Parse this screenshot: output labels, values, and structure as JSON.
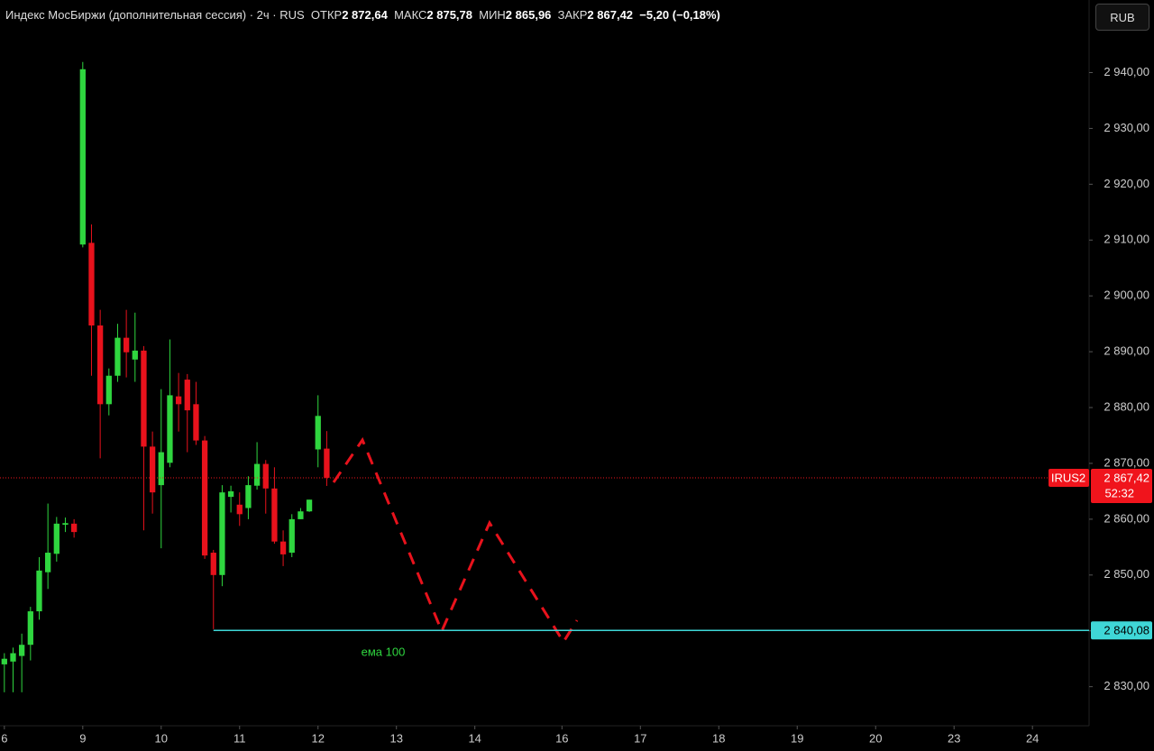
{
  "header": {
    "instrument": "Индекс МосБиржи (дополнительная сессия) · 2ч · RUS",
    "open_label": "ОТКР",
    "open": "2 872,64",
    "high_label": "МАКС",
    "high": "2 875,78",
    "low_label": "МИН",
    "low": "2 865,96",
    "close_label": "ЗАКР",
    "close": "2 867,42",
    "change": "−5,20 (−0,18%)",
    "currency": "RUB"
  },
  "chart_data": {
    "type": "candlestick",
    "ylim": [
      2823,
      2953
    ],
    "yticks": [
      {
        "value": 2830,
        "label": "2 830,00"
      },
      {
        "value": 2840,
        "label": "2 840,00"
      },
      {
        "value": 2850,
        "label": "2 850,00"
      },
      {
        "value": 2860,
        "label": "2 860,00"
      },
      {
        "value": 2870,
        "label": "2 870,00"
      },
      {
        "value": 2880,
        "label": "2 880,00"
      },
      {
        "value": 2890,
        "label": "2 890,00"
      },
      {
        "value": 2900,
        "label": "2 900,00"
      },
      {
        "value": 2910,
        "label": "2 910,00"
      },
      {
        "value": 2920,
        "label": "2 920,00"
      },
      {
        "value": 2930,
        "label": "2 930,00"
      },
      {
        "value": 2940,
        "label": "2 940,00"
      }
    ],
    "xlim": [
      -0.5,
      124.5
    ],
    "xticks": [
      {
        "value": 0,
        "label": "6"
      },
      {
        "value": 9,
        "label": "9"
      },
      {
        "value": 18,
        "label": "10"
      },
      {
        "value": 27,
        "label": "11"
      },
      {
        "value": 36,
        "label": "12"
      },
      {
        "value": 45,
        "label": "13"
      },
      {
        "value": 54,
        "label": "14"
      },
      {
        "value": 64,
        "label": "16"
      },
      {
        "value": 73,
        "label": "17"
      },
      {
        "value": 82,
        "label": "18"
      },
      {
        "value": 91,
        "label": "19"
      },
      {
        "value": 100,
        "label": "20"
      },
      {
        "value": 109,
        "label": "23"
      },
      {
        "value": 118,
        "label": "24"
      }
    ],
    "open": [
      2834,
      2834.5,
      2835.5,
      2837.5,
      2843.5,
      2850.5,
      2853.8,
      2859,
      2859.2,
      2909.2,
      2909.5,
      2894.7,
      2880.6,
      2885.7,
      2892.5,
      2888.6,
      2890.2,
      2873,
      2866.1,
      2870.1,
      2882,
      2885,
      2880.6,
      2874.1,
      2854,
      2850,
      2864,
      2862.6,
      2862,
      2866,
      2869.9,
      2865.5,
      2856,
      2854,
      2860,
      2861.4,
      2872.5,
      2872.64
    ],
    "high": [
      2836,
      2837,
      2839.5,
      2844.3,
      2853.2,
      2862.8,
      2860.4,
      2860.3,
      2860,
      2941.9,
      2912.8,
      2897.5,
      2887,
      2895,
      2897.5,
      2897,
      2891,
      2875.7,
      2883.3,
      2892.2,
      2886.2,
      2886,
      2884.6,
      2874.9,
      2854.5,
      2866.1,
      2866,
      2864.8,
      2867.7,
      2873.8,
      2870.6,
      2869.3,
      2858,
      2860.9,
      2862,
      2863.5,
      2882.2,
      2875.78
    ],
    "low": [
      2829,
      2829,
      2829,
      2834.7,
      2842,
      2847.5,
      2852.4,
      2857.7,
      2856.7,
      2908.7,
      2885.7,
      2870.9,
      2878.6,
      2884.6,
      2885.4,
      2884.6,
      2858,
      2861,
      2854.8,
      2869.3,
      2875.7,
      2872,
      2873.3,
      2852.9,
      2840.3,
      2848,
      2861.2,
      2858.8,
      2860,
      2865.3,
      2861,
      2855.6,
      2851.6,
      2853.2,
      2860,
      2861.3,
      2869.3,
      2865.96
    ],
    "close": [
      2835,
      2836,
      2837.5,
      2843.5,
      2850.8,
      2854,
      2859.2,
      2859.3,
      2857.7,
      2940.6,
      2894.7,
      2880.6,
      2885.7,
      2892.5,
      2889.9,
      2890.2,
      2873,
      2864.8,
      2872,
      2882.2,
      2880.6,
      2879.5,
      2874.1,
      2853.5,
      2850,
      2864.8,
      2865,
      2860.9,
      2866.1,
      2869.9,
      2865.5,
      2856,
      2853.7,
      2860,
      2861.4,
      2863.5,
      2878.5,
      2867.42
    ],
    "up_color": "#2fd63f",
    "down_color": "#e8121c",
    "last_price": {
      "symbol": "IRUS2",
      "value": 2867.42,
      "label": "2 867,42",
      "countdown": "52:32",
      "color": "#f0141c"
    },
    "level": {
      "value": 2840.08,
      "label": "2 840,08",
      "start_x": 24,
      "color": "#3fd7d7"
    },
    "annotation": "ема 100"
  }
}
